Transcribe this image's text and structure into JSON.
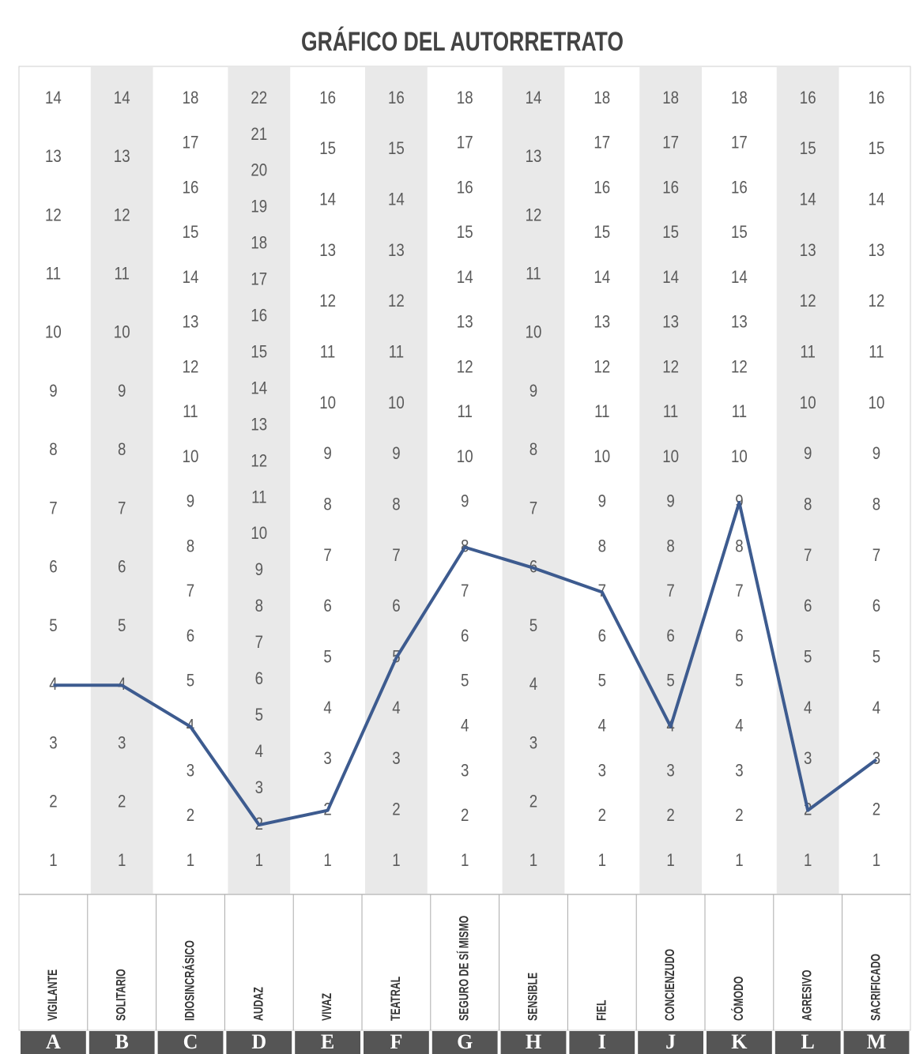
{
  "chart_data": {
    "type": "profile",
    "title": "GRÁFICO DEL AUTORRETRATO",
    "line_color": "#3d5b8f",
    "columns": [
      {
        "letter": "A",
        "label": "VIGILANTE",
        "ylim": [
          1,
          14
        ],
        "ticks": [
          1,
          2,
          3,
          4,
          5,
          6,
          7,
          8,
          9,
          10,
          11,
          12,
          13,
          14
        ],
        "value": 4
      },
      {
        "letter": "B",
        "label": "SOLITARIO",
        "ylim": [
          1,
          14
        ],
        "ticks": [
          1,
          2,
          3,
          4,
          5,
          6,
          7,
          8,
          9,
          10,
          11,
          12,
          13,
          14
        ],
        "value": 4
      },
      {
        "letter": "C",
        "label": "IDIOSINCRÁSICO",
        "ylim": [
          1,
          18
        ],
        "ticks": [
          1,
          2,
          3,
          4,
          5,
          6,
          7,
          8,
          9,
          10,
          11,
          12,
          13,
          14,
          15,
          16,
          17,
          18
        ],
        "value": 4
      },
      {
        "letter": "D",
        "label": "AUDAZ",
        "ylim": [
          1,
          22
        ],
        "ticks": [
          1,
          2,
          3,
          4,
          5,
          6,
          7,
          8,
          9,
          10,
          11,
          12,
          13,
          14,
          15,
          16,
          17,
          18,
          19,
          20,
          21,
          22
        ],
        "value": 2
      },
      {
        "letter": "E",
        "label": "VIVAZ",
        "ylim": [
          1,
          16
        ],
        "ticks": [
          1,
          2,
          3,
          4,
          5,
          6,
          7,
          8,
          9,
          10,
          11,
          12,
          13,
          14,
          15,
          16
        ],
        "value": 2
      },
      {
        "letter": "F",
        "label": "TEATRAL",
        "ylim": [
          1,
          16
        ],
        "ticks": [
          1,
          2,
          3,
          4,
          5,
          6,
          7,
          8,
          9,
          10,
          11,
          12,
          13,
          14,
          15,
          16
        ],
        "value": 5
      },
      {
        "letter": "G",
        "label": "SEGURO DE SÍ MISMO",
        "ylim": [
          1,
          18
        ],
        "ticks": [
          1,
          2,
          3,
          4,
          5,
          6,
          7,
          8,
          9,
          10,
          11,
          12,
          13,
          14,
          15,
          16,
          17,
          18
        ],
        "value": 8
      },
      {
        "letter": "H",
        "label": "SENSIBLE",
        "ylim": [
          1,
          14
        ],
        "ticks": [
          1,
          2,
          3,
          4,
          5,
          6,
          7,
          8,
          9,
          10,
          11,
          12,
          13,
          14
        ],
        "value": 6
      },
      {
        "letter": "I",
        "label": "FIEL",
        "ylim": [
          1,
          18
        ],
        "ticks": [
          1,
          2,
          3,
          4,
          5,
          6,
          7,
          8,
          9,
          10,
          11,
          12,
          13,
          14,
          15,
          16,
          17,
          18
        ],
        "value": 7
      },
      {
        "letter": "J",
        "label": "CONCIENZUDO",
        "ylim": [
          1,
          18
        ],
        "ticks": [
          1,
          2,
          3,
          4,
          5,
          6,
          7,
          8,
          9,
          10,
          11,
          12,
          13,
          14,
          15,
          16,
          17,
          18
        ],
        "value": 4
      },
      {
        "letter": "K",
        "label": "CÓMODO",
        "ylim": [
          1,
          18
        ],
        "ticks": [
          1,
          2,
          3,
          4,
          5,
          6,
          7,
          8,
          9,
          10,
          11,
          12,
          13,
          14,
          15,
          16,
          17,
          18
        ],
        "value": 9
      },
      {
        "letter": "L",
        "label": "AGRESIVO",
        "ylim": [
          1,
          16
        ],
        "ticks": [
          1,
          2,
          3,
          4,
          5,
          6,
          7,
          8,
          9,
          10,
          11,
          12,
          13,
          14,
          15,
          16
        ],
        "value": 2
      },
      {
        "letter": "M",
        "label": "SACRIFICADO",
        "ylim": [
          1,
          16
        ],
        "ticks": [
          1,
          2,
          3,
          4,
          5,
          6,
          7,
          8,
          9,
          10,
          11,
          12,
          13,
          14,
          15,
          16
        ],
        "value": 3
      }
    ]
  }
}
